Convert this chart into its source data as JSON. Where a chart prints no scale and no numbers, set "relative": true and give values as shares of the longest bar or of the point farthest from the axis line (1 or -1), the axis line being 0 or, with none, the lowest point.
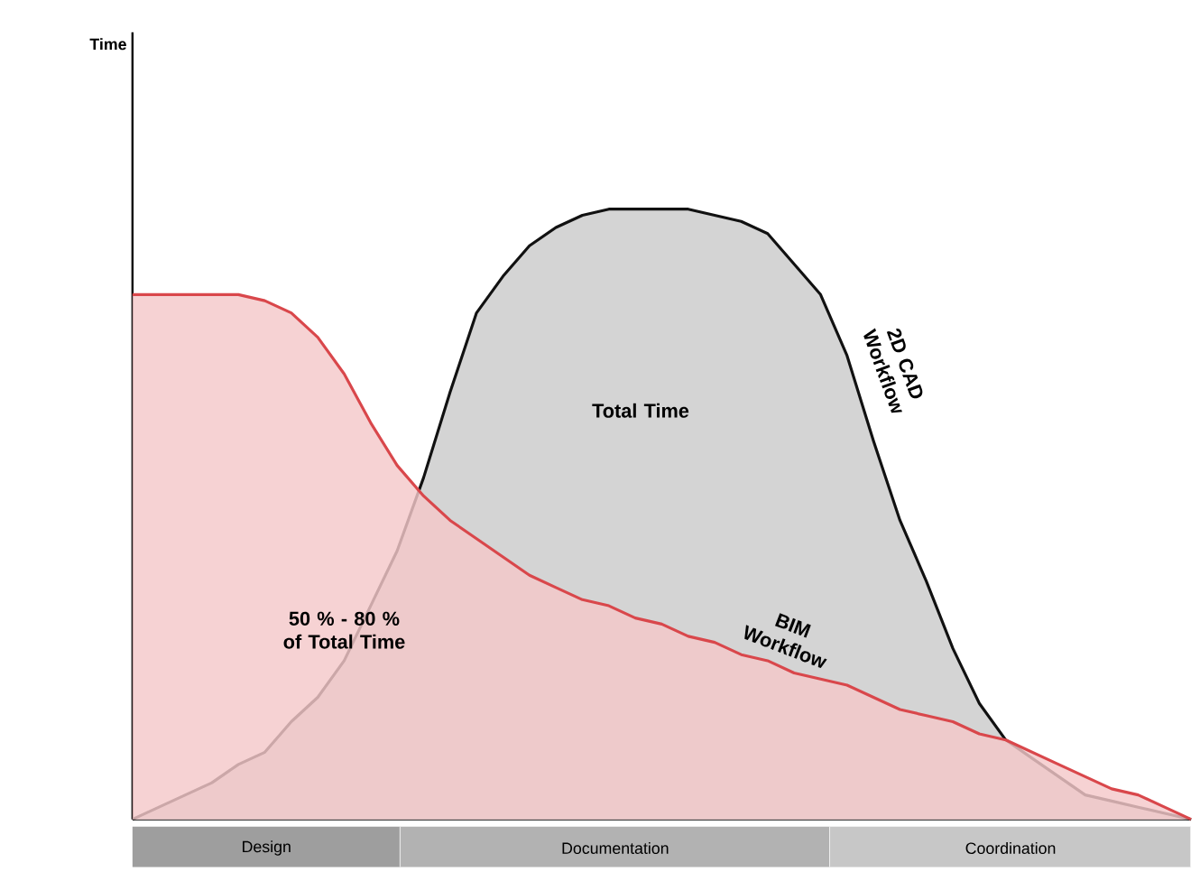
{
  "chart_data": {
    "type": "area",
    "relative": true,
    "categories": [
      null,
      null,
      null,
      null,
      null,
      null,
      null,
      null,
      null,
      null,
      null,
      null,
      null,
      null,
      null,
      null,
      null,
      null,
      null,
      null,
      null,
      null,
      null,
      null,
      null,
      null,
      null,
      null,
      null,
      null,
      null,
      null,
      null,
      null,
      null,
      null,
      null,
      null,
      null,
      null,
      null
    ],
    "series": [
      {
        "name": "2D CAD Workflow",
        "color": "#111111",
        "values": [
          0,
          0.02,
          0.04,
          0.06,
          0.09,
          0.11,
          0.16,
          0.2,
          0.26,
          0.35,
          0.44,
          0.56,
          0.7,
          0.83,
          0.89,
          0.94,
          0.97,
          0.99,
          1.0,
          1.0,
          1.0,
          1.0,
          0.99,
          0.98,
          0.96,
          0.91,
          0.86,
          0.76,
          0.62,
          0.49,
          0.39,
          0.28,
          0.19,
          0.13,
          0.1,
          0.07,
          0.04,
          0.03,
          0.02,
          0.01,
          0
        ]
      },
      {
        "name": "BIM Workflow",
        "color": "#d9474b",
        "values": [
          0.86,
          0.86,
          0.86,
          0.86,
          0.86,
          0.85,
          0.83,
          0.79,
          0.73,
          0.65,
          0.58,
          0.53,
          0.49,
          0.46,
          0.43,
          0.4,
          0.38,
          0.36,
          0.35,
          0.33,
          0.32,
          0.3,
          0.29,
          0.27,
          0.26,
          0.24,
          0.23,
          0.22,
          0.2,
          0.18,
          0.17,
          0.16,
          0.14,
          0.13,
          0.11,
          0.09,
          0.07,
          0.05,
          0.04,
          0.02,
          0
        ]
      }
    ],
    "annotations": [
      "Time",
      "Total Time",
      "50 % - 80 % of Total Time",
      "Design",
      "Documentation",
      "Coordination"
    ]
  }
}
